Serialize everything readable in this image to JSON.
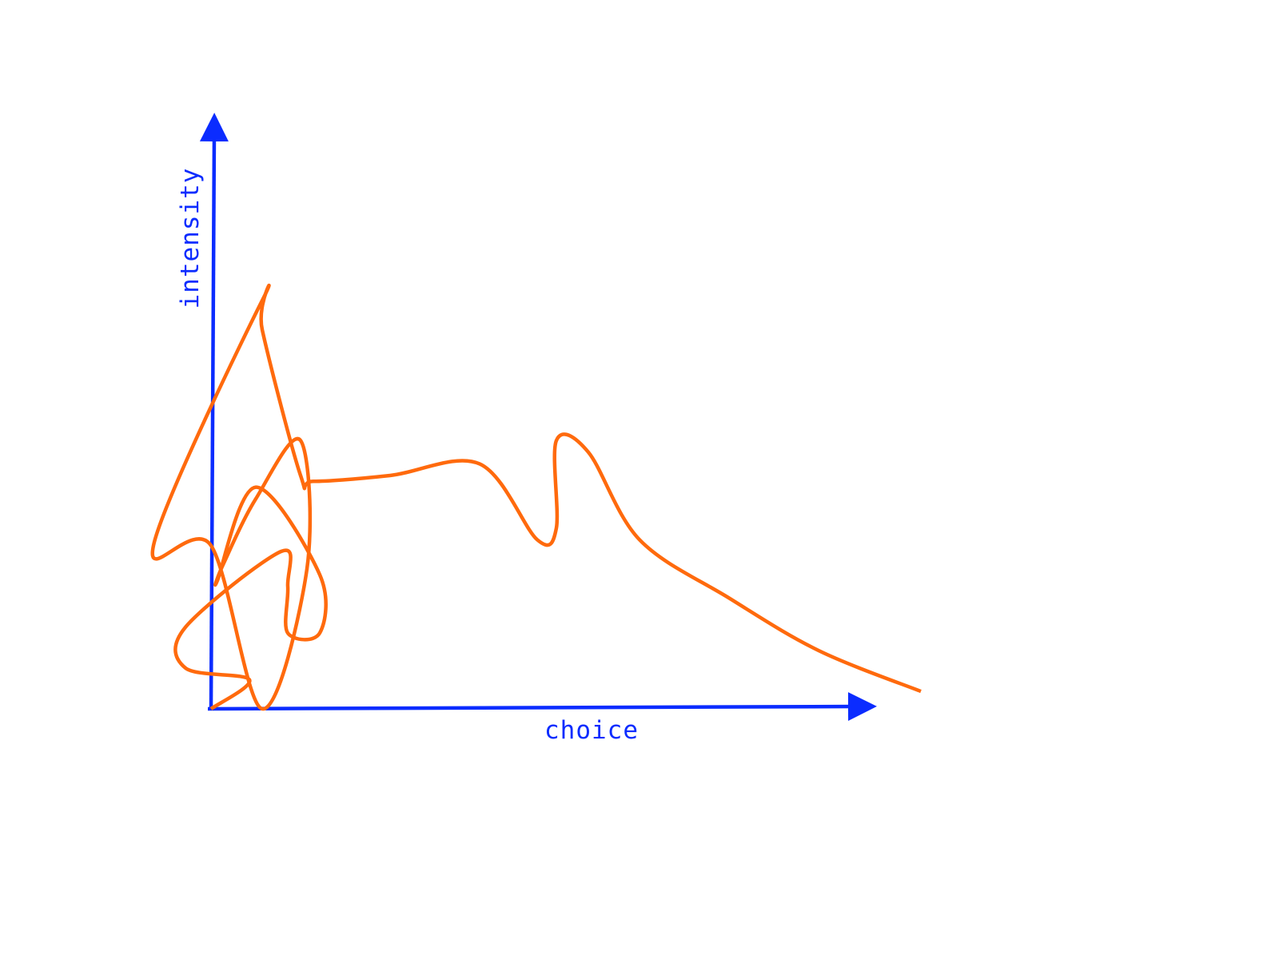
{
  "chart_data": {
    "type": "line",
    "title": "",
    "xlabel": "choice",
    "ylabel": "intensity",
    "xlim": [
      0,
      100
    ],
    "ylim": [
      0,
      100
    ],
    "grid": false,
    "legend": "none",
    "axis_color": "#0b2cff",
    "series": [
      {
        "color": "#ff6a0d",
        "x": [
          0,
          6,
          -4,
          -4,
          11,
          12,
          12,
          17,
          17,
          7,
          1,
          2,
          7,
          14,
          15,
          8,
          0,
          -9,
          8,
          8,
          14,
          16,
          28,
          42,
          51,
          54,
          54,
          59,
          67,
          81,
          95,
          111
        ],
        "y": [
          0,
          5,
          7,
          14,
          27,
          21,
          13,
          13,
          23,
          38,
          22,
          25,
          36,
          46,
          24,
          0,
          28,
          28,
          70,
          65,
          40,
          39,
          40,
          42,
          29,
          31,
          46,
          44,
          29,
          19,
          10,
          3
        ]
      }
    ]
  }
}
